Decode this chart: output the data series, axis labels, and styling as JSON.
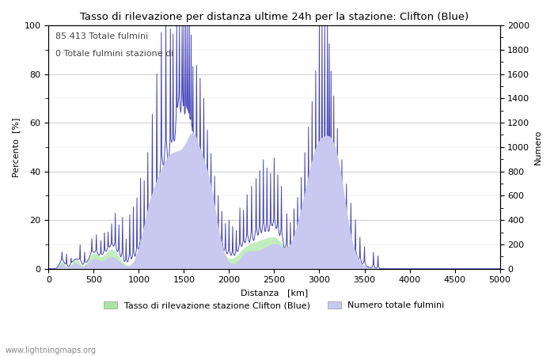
{
  "title": "Tasso di rilevazione per distanza ultime 24h per la stazione: Clifton (Blue)",
  "xlabel": "Distanza   [km]",
  "ylabel_left": "Percento  [%]",
  "ylabel_right": "Numero",
  "annotation_line1": "85.413 Totale fulmini",
  "annotation_line2": "0 Totale fulmini stazione di",
  "watermark": "www.lightningmaps.org",
  "legend_label1": "Tasso di rilevazione stazione Clifton (Blue)",
  "legend_label2": "Numero totale fulmini",
  "xlim": [
    0,
    5000
  ],
  "ylim_left": [
    0,
    100
  ],
  "ylim_right": [
    0,
    2000
  ],
  "xticks": [
    0,
    500,
    1000,
    1500,
    2000,
    2500,
    3000,
    3500,
    4000,
    4500,
    5000
  ],
  "yticks_left": [
    0,
    20,
    40,
    60,
    80,
    100
  ],
  "yticks_right": [
    0,
    200,
    400,
    600,
    800,
    1000,
    1200,
    1400,
    1600,
    1800,
    2000
  ],
  "fill_color_green": "#a8e6a0",
  "fill_color_blue": "#c8c8f0",
  "line_color": "#4444bb",
  "bg_color": "#ffffff",
  "grid_color": "#bbbbbb"
}
